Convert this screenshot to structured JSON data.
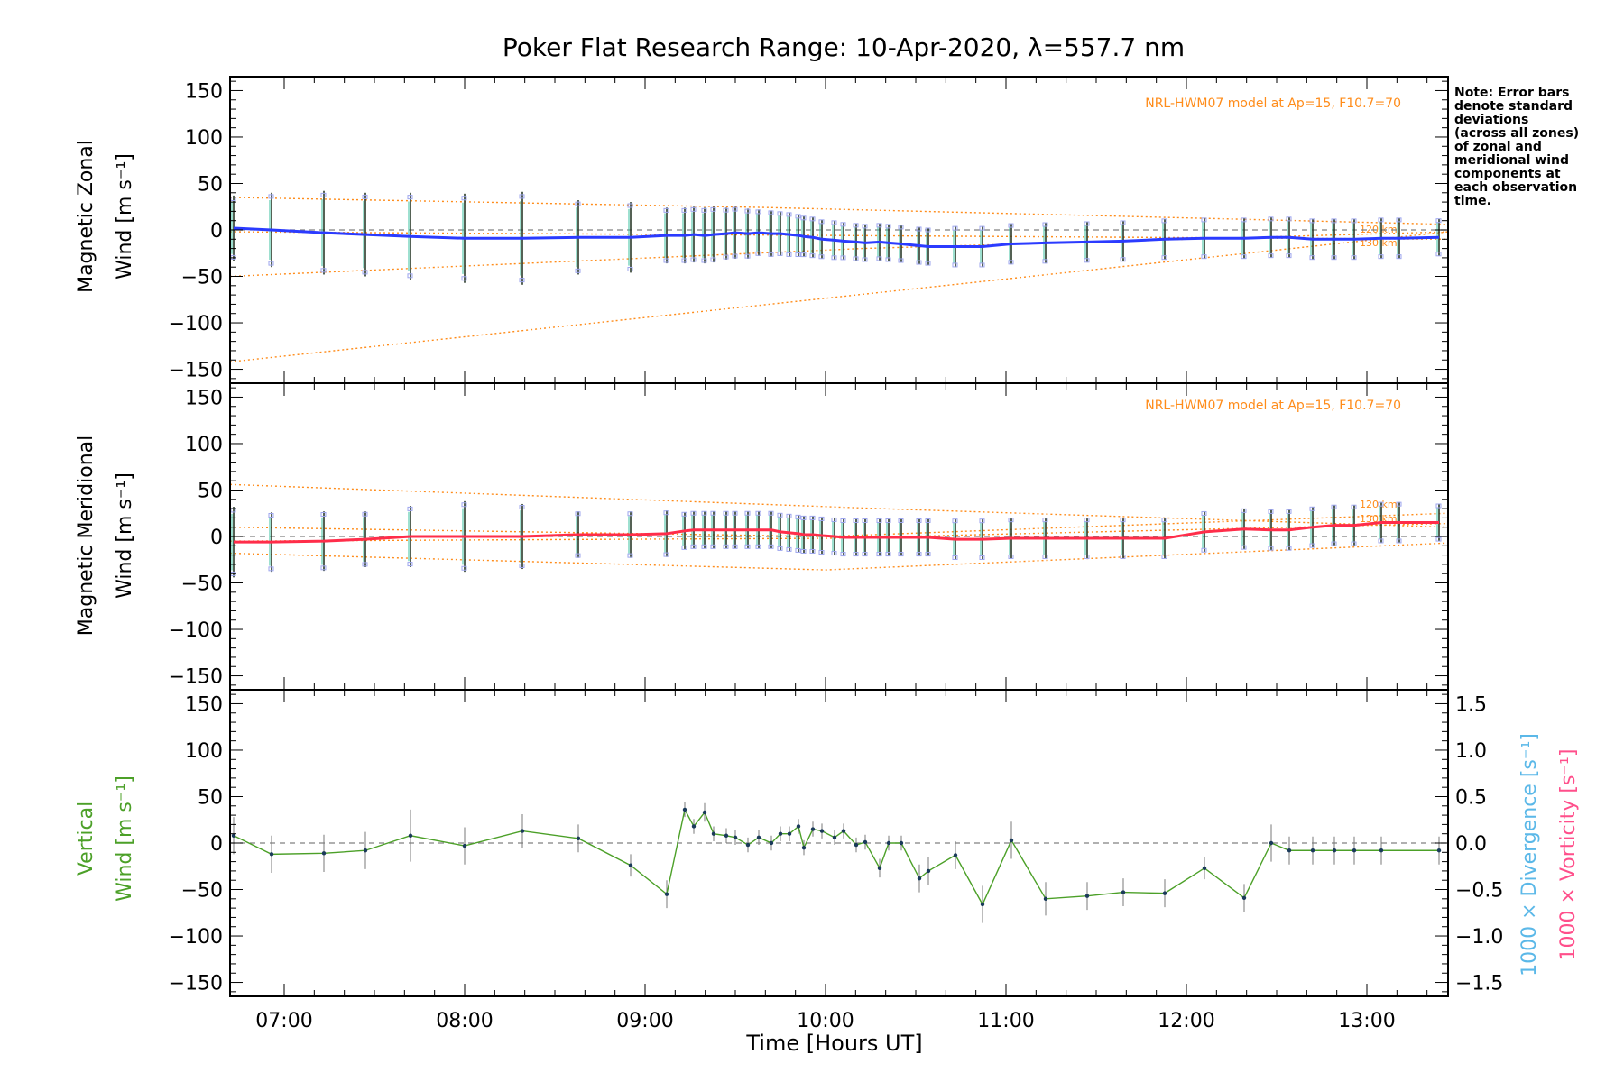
{
  "title": "Poker Flat Research Range: 10-Apr-2020, λ=557.7 nm",
  "note": [
    "Note: Error bars",
    "denote standard",
    "deviations",
    "(across all zones)",
    "of zonal and",
    "meridional wind",
    "components at",
    "each observation",
    "time."
  ],
  "model_label": "NRL-HWM07 model at Ap=15, F10.7=70",
  "xlabel": "Time [Hours UT]",
  "x_ticks": [
    "07:00",
    "08:00",
    "09:00",
    "10:00",
    "11:00",
    "12:00",
    "13:00"
  ],
  "colors": {
    "zonal": "#2b3bff",
    "meridional": "#ff2d4a",
    "vertical": "#4ca028",
    "model": "#ff8c1a",
    "divergence": "#5bb8e8",
    "vorticity": "#ff4f8b",
    "zone_box": "#9ea6ee"
  },
  "panels": {
    "zonal": {
      "ylabel": [
        "Magnetic Zonal",
        "Wind [m s⁻¹]"
      ],
      "model_levels": [
        "120 km",
        "130 km"
      ]
    },
    "meridional": {
      "ylabel": [
        "Magnetic Meridional",
        "Wind [m s⁻¹]"
      ],
      "model_levels": [
        "120 km",
        "130 km"
      ]
    },
    "vertical": {
      "ylabel": [
        "Vertical",
        "Wind [m s⁻¹]"
      ],
      "right_labels": [
        "1000 × Divergence [s⁻¹]",
        "1000 × Vorticity [s⁻¹]"
      ]
    }
  },
  "y_ticks": [
    "150",
    "100",
    "50",
    "0",
    "−50",
    "−100",
    "−150"
  ],
  "y2_ticks": [
    "1.5",
    "1.0",
    "0.5",
    "0.0",
    "−0.5",
    "−1.0",
    "−1.5"
  ],
  "chart_data": [
    {
      "type": "line",
      "name": "zonal",
      "xlim": [
        6.7,
        13.45
      ],
      "ylim": [
        -165,
        165
      ],
      "x": [
        6.72,
        6.93,
        7.22,
        7.45,
        7.7,
        8.0,
        8.32,
        8.63,
        8.92,
        9.12,
        9.22,
        9.27,
        9.33,
        9.38,
        9.45,
        9.5,
        9.57,
        9.63,
        9.7,
        9.75,
        9.8,
        9.85,
        9.88,
        9.93,
        9.98,
        10.05,
        10.1,
        10.17,
        10.22,
        10.3,
        10.35,
        10.42,
        10.52,
        10.57,
        10.72,
        10.87,
        11.03,
        11.22,
        11.45,
        11.65,
        11.88,
        12.1,
        12.32,
        12.47,
        12.57,
        12.7,
        12.82,
        12.93,
        13.08,
        13.18,
        13.4
      ],
      "y": [
        2,
        0,
        -3,
        -5,
        -7,
        -9,
        -9,
        -8,
        -8,
        -6,
        -6,
        -5,
        -6,
        -5,
        -4,
        -3,
        -4,
        -3,
        -4,
        -4,
        -5,
        -6,
        -7,
        -8,
        -10,
        -11,
        -12,
        -13,
        -14,
        -13,
        -14,
        -15,
        -17,
        -18,
        -18,
        -18,
        -15,
        -14,
        -13,
        -12,
        -10,
        -9,
        -9,
        -8,
        -8,
        -10,
        -10,
        -10,
        -9,
        -9,
        -8
      ],
      "err": [
        35,
        40,
        45,
        45,
        47,
        48,
        50,
        40,
        38,
        30,
        30,
        30,
        30,
        30,
        28,
        28,
        27,
        25,
        25,
        24,
        24,
        23,
        22,
        22,
        21,
        21,
        20,
        20,
        20,
        20,
        20,
        20,
        20,
        20,
        22,
        22,
        22,
        22,
        22,
        22,
        22,
        22,
        22,
        22,
        22,
        22,
        22,
        22,
        22,
        22,
        20
      ],
      "model_lines": [
        {
          "x": [
            6.7,
            9.7,
            13.45
          ],
          "y": [
            35,
            24,
            6
          ]
        },
        {
          "x": [
            6.7,
            10.2,
            13.45
          ],
          "y": [
            -50,
            -20,
            -2
          ]
        },
        {
          "x": [
            6.7,
            13.45
          ],
          "y": [
            -142,
            -2
          ]
        },
        {
          "x": [
            6.7,
            13.45
          ],
          "y": [
            -2,
            -10
          ]
        }
      ]
    },
    {
      "type": "line",
      "name": "meridional",
      "xlim": [
        6.7,
        13.45
      ],
      "ylim": [
        -165,
        165
      ],
      "x": [
        6.72,
        6.93,
        7.22,
        7.45,
        7.7,
        8.0,
        8.32,
        8.63,
        8.92,
        9.12,
        9.22,
        9.27,
        9.33,
        9.38,
        9.45,
        9.5,
        9.57,
        9.63,
        9.7,
        9.75,
        9.8,
        9.85,
        9.88,
        9.93,
        9.98,
        10.05,
        10.1,
        10.17,
        10.22,
        10.3,
        10.35,
        10.42,
        10.52,
        10.57,
        10.72,
        10.87,
        11.03,
        11.22,
        11.45,
        11.65,
        11.88,
        12.1,
        12.32,
        12.47,
        12.57,
        12.7,
        12.82,
        12.93,
        13.08,
        13.18,
        13.4
      ],
      "y": [
        -6,
        -6,
        -5,
        -3,
        0,
        0,
        0,
        2,
        2,
        3,
        6,
        7,
        7,
        7,
        7,
        7,
        7,
        7,
        7,
        5,
        4,
        3,
        2,
        2,
        1,
        0,
        -1,
        -1,
        -1,
        -1,
        -1,
        -1,
        -1,
        -1,
        -3,
        -3,
        -2,
        -2,
        -2,
        -2,
        -2,
        5,
        8,
        7,
        7,
        10,
        12,
        12,
        15,
        15,
        15
      ],
      "err": [
        38,
        32,
        32,
        30,
        33,
        38,
        35,
        25,
        25,
        25,
        20,
        20,
        20,
        20,
        20,
        20,
        20,
        20,
        20,
        20,
        20,
        20,
        20,
        20,
        20,
        20,
        20,
        20,
        20,
        20,
        20,
        20,
        20,
        20,
        22,
        22,
        22,
        22,
        22,
        22,
        22,
        22,
        22,
        22,
        22,
        22,
        22,
        22,
        22,
        22,
        20
      ],
      "model_lines": [
        {
          "x": [
            6.7,
            10.3,
            13.45
          ],
          "y": [
            56,
            30,
            10
          ]
        },
        {
          "x": [
            6.7,
            10.0,
            13.45
          ],
          "y": [
            -18,
            -36,
            -7
          ]
        },
        {
          "x": [
            6.7,
            10.0,
            13.45
          ],
          "y": [
            10,
            0,
            25
          ]
        },
        {
          "x": [
            6.7,
            10.0,
            13.45
          ],
          "y": [
            -5,
            -2,
            14
          ]
        }
      ]
    },
    {
      "type": "line",
      "name": "vertical",
      "xlim": [
        6.7,
        13.45
      ],
      "ylim": [
        -165,
        165
      ],
      "y2lim": [
        -1.65,
        1.65
      ],
      "x": [
        6.72,
        6.93,
        7.22,
        7.45,
        7.7,
        8.0,
        8.32,
        8.63,
        8.92,
        9.12,
        9.22,
        9.27,
        9.33,
        9.38,
        9.45,
        9.5,
        9.57,
        9.63,
        9.7,
        9.75,
        9.8,
        9.85,
        9.88,
        9.93,
        9.98,
        10.05,
        10.1,
        10.17,
        10.22,
        10.3,
        10.35,
        10.42,
        10.52,
        10.57,
        10.72,
        10.87,
        11.03,
        11.22,
        11.45,
        11.65,
        11.88,
        12.1,
        12.32,
        12.47,
        12.57,
        12.7,
        12.82,
        12.93,
        13.08,
        13.4
      ],
      "y": [
        8,
        -12,
        -11,
        -8,
        8,
        -3,
        13,
        5,
        -24,
        -55,
        36,
        18,
        33,
        10,
        8,
        6,
        -2,
        6,
        0,
        10,
        10,
        18,
        -5,
        15,
        13,
        6,
        13,
        -2,
        1,
        -27,
        0,
        0,
        -38,
        -30,
        -13,
        -66,
        3,
        -60,
        -57,
        -53,
        -54,
        -27,
        -59,
        0,
        -8,
        -8,
        -8,
        -8,
        -8,
        -8
      ],
      "err": [
        20,
        20,
        20,
        20,
        28,
        20,
        18,
        15,
        12,
        15,
        8,
        8,
        10,
        8,
        8,
        8,
        8,
        8,
        8,
        8,
        8,
        8,
        8,
        8,
        8,
        8,
        8,
        8,
        8,
        10,
        8,
        8,
        15,
        15,
        15,
        20,
        20,
        18,
        15,
        15,
        15,
        12,
        15,
        20,
        15,
        15,
        15,
        15,
        15,
        15
      ]
    }
  ]
}
